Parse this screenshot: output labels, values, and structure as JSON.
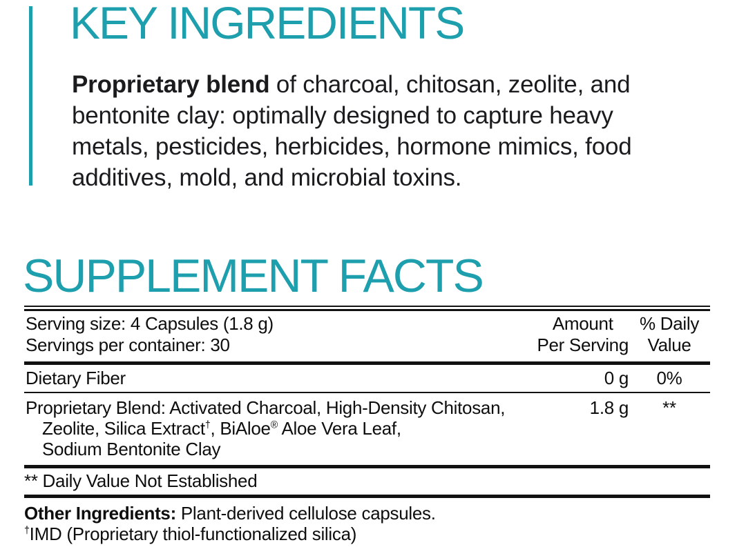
{
  "colors": {
    "accent_teal": "#1E9FAD",
    "text_black": "#121213"
  },
  "key_ingredients": {
    "title": "KEY INGREDIENTS",
    "paragraph_lines": [
      {
        "bold": "Proprietary blend",
        "text": " of charcoal, chitosan, zeolite, and"
      },
      {
        "bold": "",
        "text": "bentonite clay: optimally designed to capture heavy"
      },
      {
        "bold": "",
        "text": "metals, pesticides, herbicides, hormone mimics, food"
      },
      {
        "bold": "",
        "text": "additives, mold, and microbial toxins."
      }
    ]
  },
  "supplement_facts": {
    "title": "SUPPLEMENT FACTS",
    "serving_size": "Serving size: 4 Capsules (1.8 g)",
    "servings_per_container": "Servings per container: 30",
    "columns": {
      "amount_line1": "Amount",
      "amount_line2": "Per Serving",
      "dv_line1": "% Daily",
      "dv_line2": "Value"
    },
    "dietary_fiber": {
      "name": "Dietary Fiber",
      "amount": "0 g",
      "dv": "0%"
    },
    "proprietary_blend": {
      "line1": "Proprietary Blend: Activated Charcoal, High-Density Chitosan,",
      "line2_part1": "Zeolite, Silica Extract",
      "line2_dagger": "†",
      "line2_part2": ", BiAloe",
      "line2_reg": "®",
      "line2_part3": " Aloe Vera Leaf,",
      "line3": "Sodium Bentonite Clay",
      "amount": "1.8 g",
      "dv": "**"
    },
    "footnote": "** Daily Value Not Established",
    "other_ingredients_label": "Other Ingredients:",
    "other_ingredients_text": " Plant-derived cellulose capsules.",
    "imd_dagger": "†",
    "imd_text": "IMD (Proprietary thiol-functionalized silica)"
  }
}
